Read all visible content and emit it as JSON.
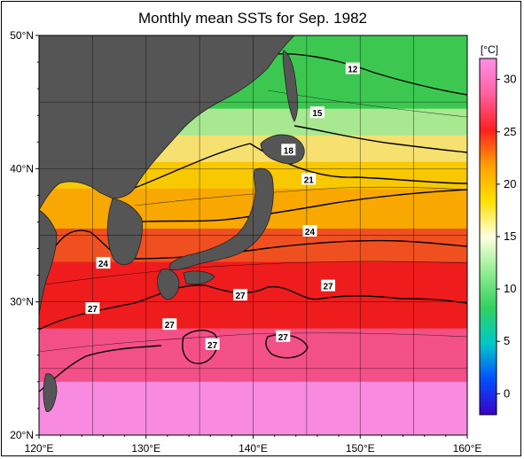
{
  "chart_data": {
    "type": "heatmap",
    "title": "Monthly mean SSTs for Sep. 1982",
    "x_ticks": [
      "120°E",
      "130°E",
      "140°E",
      "150°E",
      "160°E"
    ],
    "y_ticks": [
      "20°N",
      "30°N",
      "40°N",
      "50°N"
    ],
    "xlim": [
      120,
      160
    ],
    "ylim": [
      20,
      50
    ],
    "grid": true,
    "colorbar": {
      "unit": "[°C]",
      "ticks": [
        "0",
        "5",
        "10",
        "15",
        "20",
        "25",
        "30"
      ],
      "range": [
        -2,
        32
      ],
      "colors": [
        "#3a00c8",
        "#0050ff",
        "#00c8c8",
        "#30d060",
        "#90ee90",
        "#ffffe0",
        "#ffe000",
        "#ffa000",
        "#ff2020",
        "#ff60a0",
        "#ff90e8"
      ]
    },
    "contour_labels": [
      {
        "text": "12",
        "lon": 149.3,
        "lat": 47.5
      },
      {
        "text": "15",
        "lon": 146.0,
        "lat": 44.2
      },
      {
        "text": "18",
        "lon": 143.3,
        "lat": 41.4
      },
      {
        "text": "21",
        "lon": 145.2,
        "lat": 39.2
      },
      {
        "text": "24",
        "lon": 145.3,
        "lat": 35.3
      },
      {
        "text": "24",
        "lon": 126.0,
        "lat": 32.9
      },
      {
        "text": "27",
        "lon": 147.0,
        "lat": 31.2
      },
      {
        "text": "27",
        "lon": 138.8,
        "lat": 30.5
      },
      {
        "text": "27",
        "lon": 125.0,
        "lat": 29.5
      },
      {
        "text": "27",
        "lon": 132.2,
        "lat": 28.3
      },
      {
        "text": "27",
        "lon": 136.2,
        "lat": 26.8
      },
      {
        "text": "27",
        "lon": 142.8,
        "lat": 27.4
      }
    ],
    "colors": {
      "land": "#555555",
      "sst_bands": [
        {
          "lat_from": 50,
          "lat_to": 44.5,
          "color": "#3cc850"
        },
        {
          "lat_from": 44.5,
          "lat_to": 42.5,
          "color": "#a8e890"
        },
        {
          "lat_from": 42.5,
          "lat_to": 40.5,
          "color": "#f6e070"
        },
        {
          "lat_from": 40.5,
          "lat_to": 38.5,
          "color": "#f8c800"
        },
        {
          "lat_from": 38.5,
          "lat_to": 35.5,
          "color": "#f8a800"
        },
        {
          "lat_from": 35.5,
          "lat_to": 33,
          "color": "#f05020"
        },
        {
          "lat_from": 33,
          "lat_to": 28,
          "color": "#ee1c1c"
        },
        {
          "lat_from": 28,
          "lat_to": 24,
          "color": "#f45088"
        },
        {
          "lat_from": 24,
          "lat_to": 20,
          "color": "#f88ae0"
        }
      ]
    }
  }
}
